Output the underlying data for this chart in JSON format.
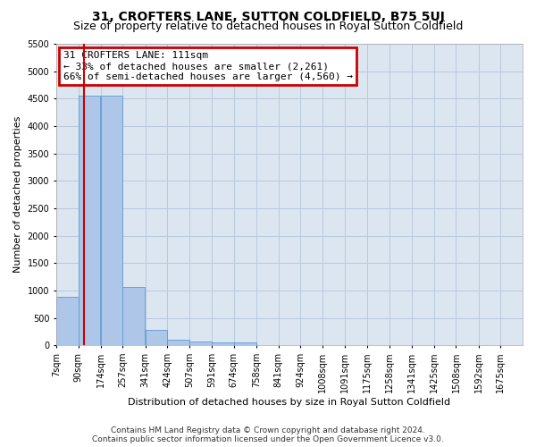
{
  "title": "31, CROFTERS LANE, SUTTON COLDFIELD, B75 5UJ",
  "subtitle": "Size of property relative to detached houses in Royal Sutton Coldfield",
  "xlabel": "Distribution of detached houses by size in Royal Sutton Coldfield",
  "ylabel": "Number of detached properties",
  "footer_line1": "Contains HM Land Registry data © Crown copyright and database right 2024.",
  "footer_line2": "Contains public sector information licensed under the Open Government Licence v3.0.",
  "annotation_line1": "31 CROFTERS LANE: 111sqm",
  "annotation_line2": "← 33% of detached houses are smaller (2,261)",
  "annotation_line3": "66% of semi-detached houses are larger (4,560) →",
  "property_size": 111,
  "categories": [
    "7sqm",
    "90sqm",
    "174sqm",
    "257sqm",
    "341sqm",
    "424sqm",
    "507sqm",
    "591sqm",
    "674sqm",
    "758sqm",
    "841sqm",
    "924sqm",
    "1008sqm",
    "1091sqm",
    "1175sqm",
    "1258sqm",
    "1341sqm",
    "1425sqm",
    "1508sqm",
    "1592sqm",
    "1675sqm"
  ],
  "bin_edges": [
    7,
    90,
    174,
    257,
    341,
    424,
    507,
    591,
    674,
    758,
    841,
    924,
    1008,
    1091,
    1175,
    1258,
    1341,
    1425,
    1508,
    1592,
    1675
  ],
  "bin_width": 83,
  "values": [
    880,
    4560,
    4560,
    1060,
    290,
    95,
    70,
    60,
    60,
    0,
    0,
    0,
    0,
    0,
    0,
    0,
    0,
    0,
    0,
    0,
    0
  ],
  "bar_color": "#aec6e8",
  "bar_edge_color": "#5b9bd5",
  "red_line_color": "#cc0000",
  "annotation_box_edge_color": "#cc0000",
  "background_color": "#ffffff",
  "plot_bg_color": "#dce6f1",
  "grid_color": "#b8c9dc",
  "ylim_max": 5500,
  "yticks": [
    0,
    500,
    1000,
    1500,
    2000,
    2500,
    3000,
    3500,
    4000,
    4500,
    5000,
    5500
  ],
  "title_fontsize": 10,
  "subtitle_fontsize": 9,
  "xlabel_fontsize": 8,
  "ylabel_fontsize": 8,
  "tick_fontsize": 7,
  "annotation_fontsize": 8,
  "footer_fontsize": 6.5
}
